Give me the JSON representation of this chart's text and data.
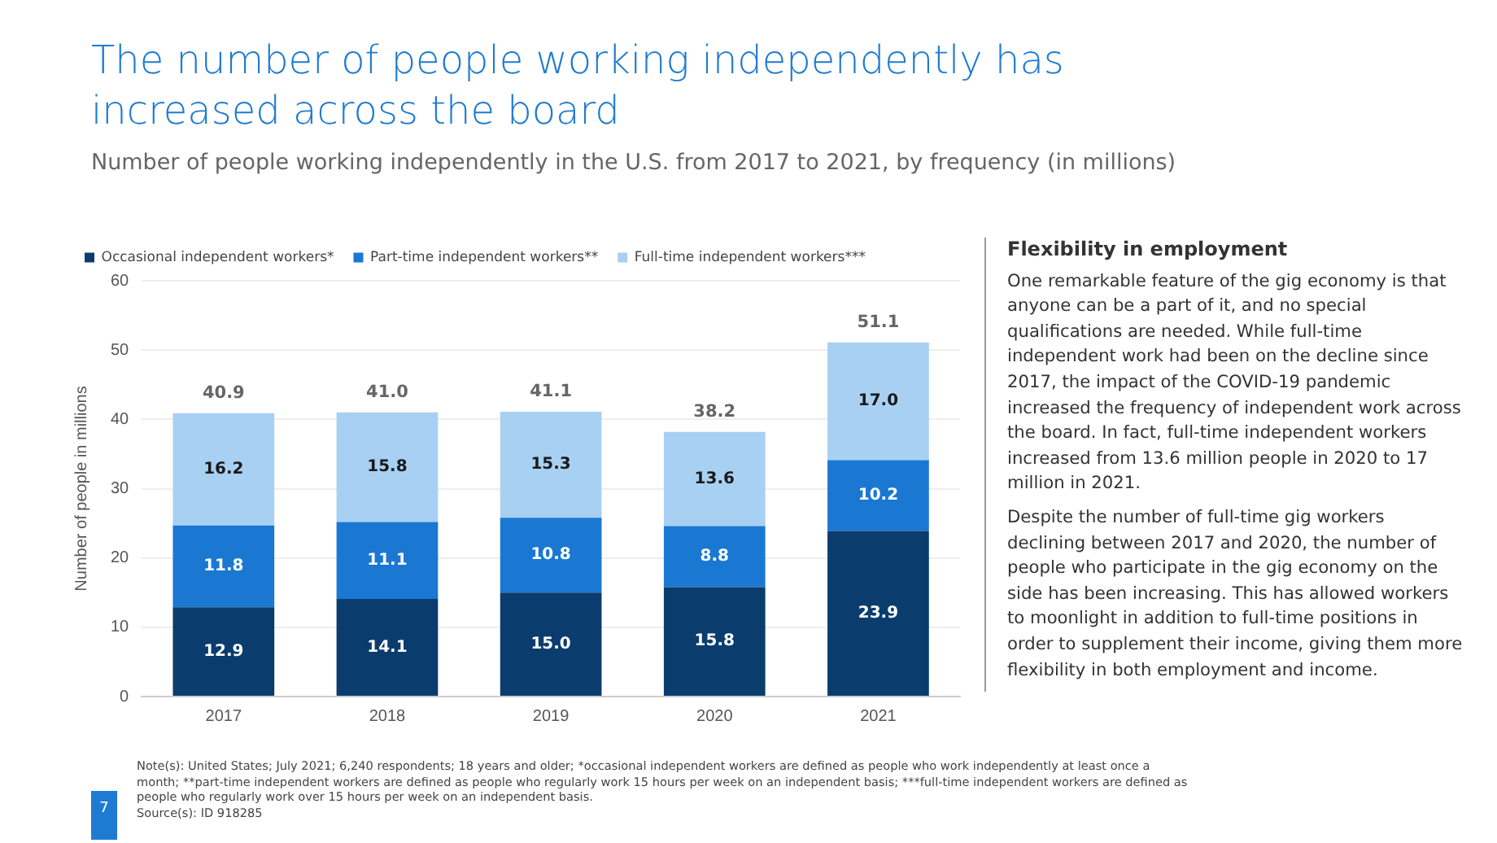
{
  "chart_data": {
    "type": "bar",
    "title": "The number of people working independently has increased across the board",
    "subtitle": "Number of people working independently in the U.S. from 2017 to 2021, by frequency (in millions)",
    "ylabel": "Number of people in millions",
    "categories": [
      "2017",
      "2018",
      "2019",
      "2020",
      "2021"
    ],
    "series": [
      {
        "name": "Occasional independent workers*",
        "color": "#0b3c6e",
        "values": [
          12.9,
          14.1,
          15.0,
          15.8,
          23.9
        ],
        "value_labels": [
          "12.9",
          "14.1",
          "15.0",
          "15.8",
          "23.9"
        ]
      },
      {
        "name": "Part-time independent workers**",
        "color": "#1a78d2",
        "values": [
          11.8,
          11.1,
          10.8,
          8.8,
          10.2
        ],
        "value_labels": [
          "11.8",
          "11.1",
          "10.8",
          "8.8",
          "10.2"
        ]
      },
      {
        "name": "Full-time independent workers***",
        "color": "#a8d0f3",
        "values": [
          16.2,
          15.8,
          15.3,
          13.6,
          17.0
        ],
        "value_labels": [
          "16.2",
          "15.8",
          "15.3",
          "13.6",
          "17.0"
        ]
      }
    ],
    "stacked": true,
    "totals": [
      "40.9",
      "41.0",
      "41.1",
      "38.2",
      "51.1"
    ],
    "ylim": [
      0,
      60
    ],
    "yticks": [
      0,
      10,
      20,
      30,
      40,
      50,
      60
    ],
    "grid": "y",
    "legend": "top left",
    "annotations": [
      "Flexibility in employment",
      "One remarkable feature of the gig economy is that anyone can be a part of it, and no special qualifications are needed. While full-time independent work had been on the decline since 2017, the impact of the COVID-19 pandemic increased the frequency of independent work across the board. In fact, full-time independent workers increased from 13.6 million people in 2020 to 17 million in 2021.",
      "Despite the number of full-time gig workers declining between 2017 and 2020, the number of people who participate in the gig economy on the side has been increasing. This has allowed workers to moonlight in addition to full-time positions in order to supplement their income, giving them more flexibility in both employment and income.",
      "Note(s): United States; July 2021; 6,240 respondents; 18 years and older; *occasional independent workers are defined as people who work independently at least once a month; **part-time independent workers are defined as people who regularly work 15 hours per week on an independent basis; ***full-time independent workers are defined as people who regularly work over 15 hours per week on an independent basis.",
      "Source(s): ID 918285",
      "7"
    ]
  }
}
